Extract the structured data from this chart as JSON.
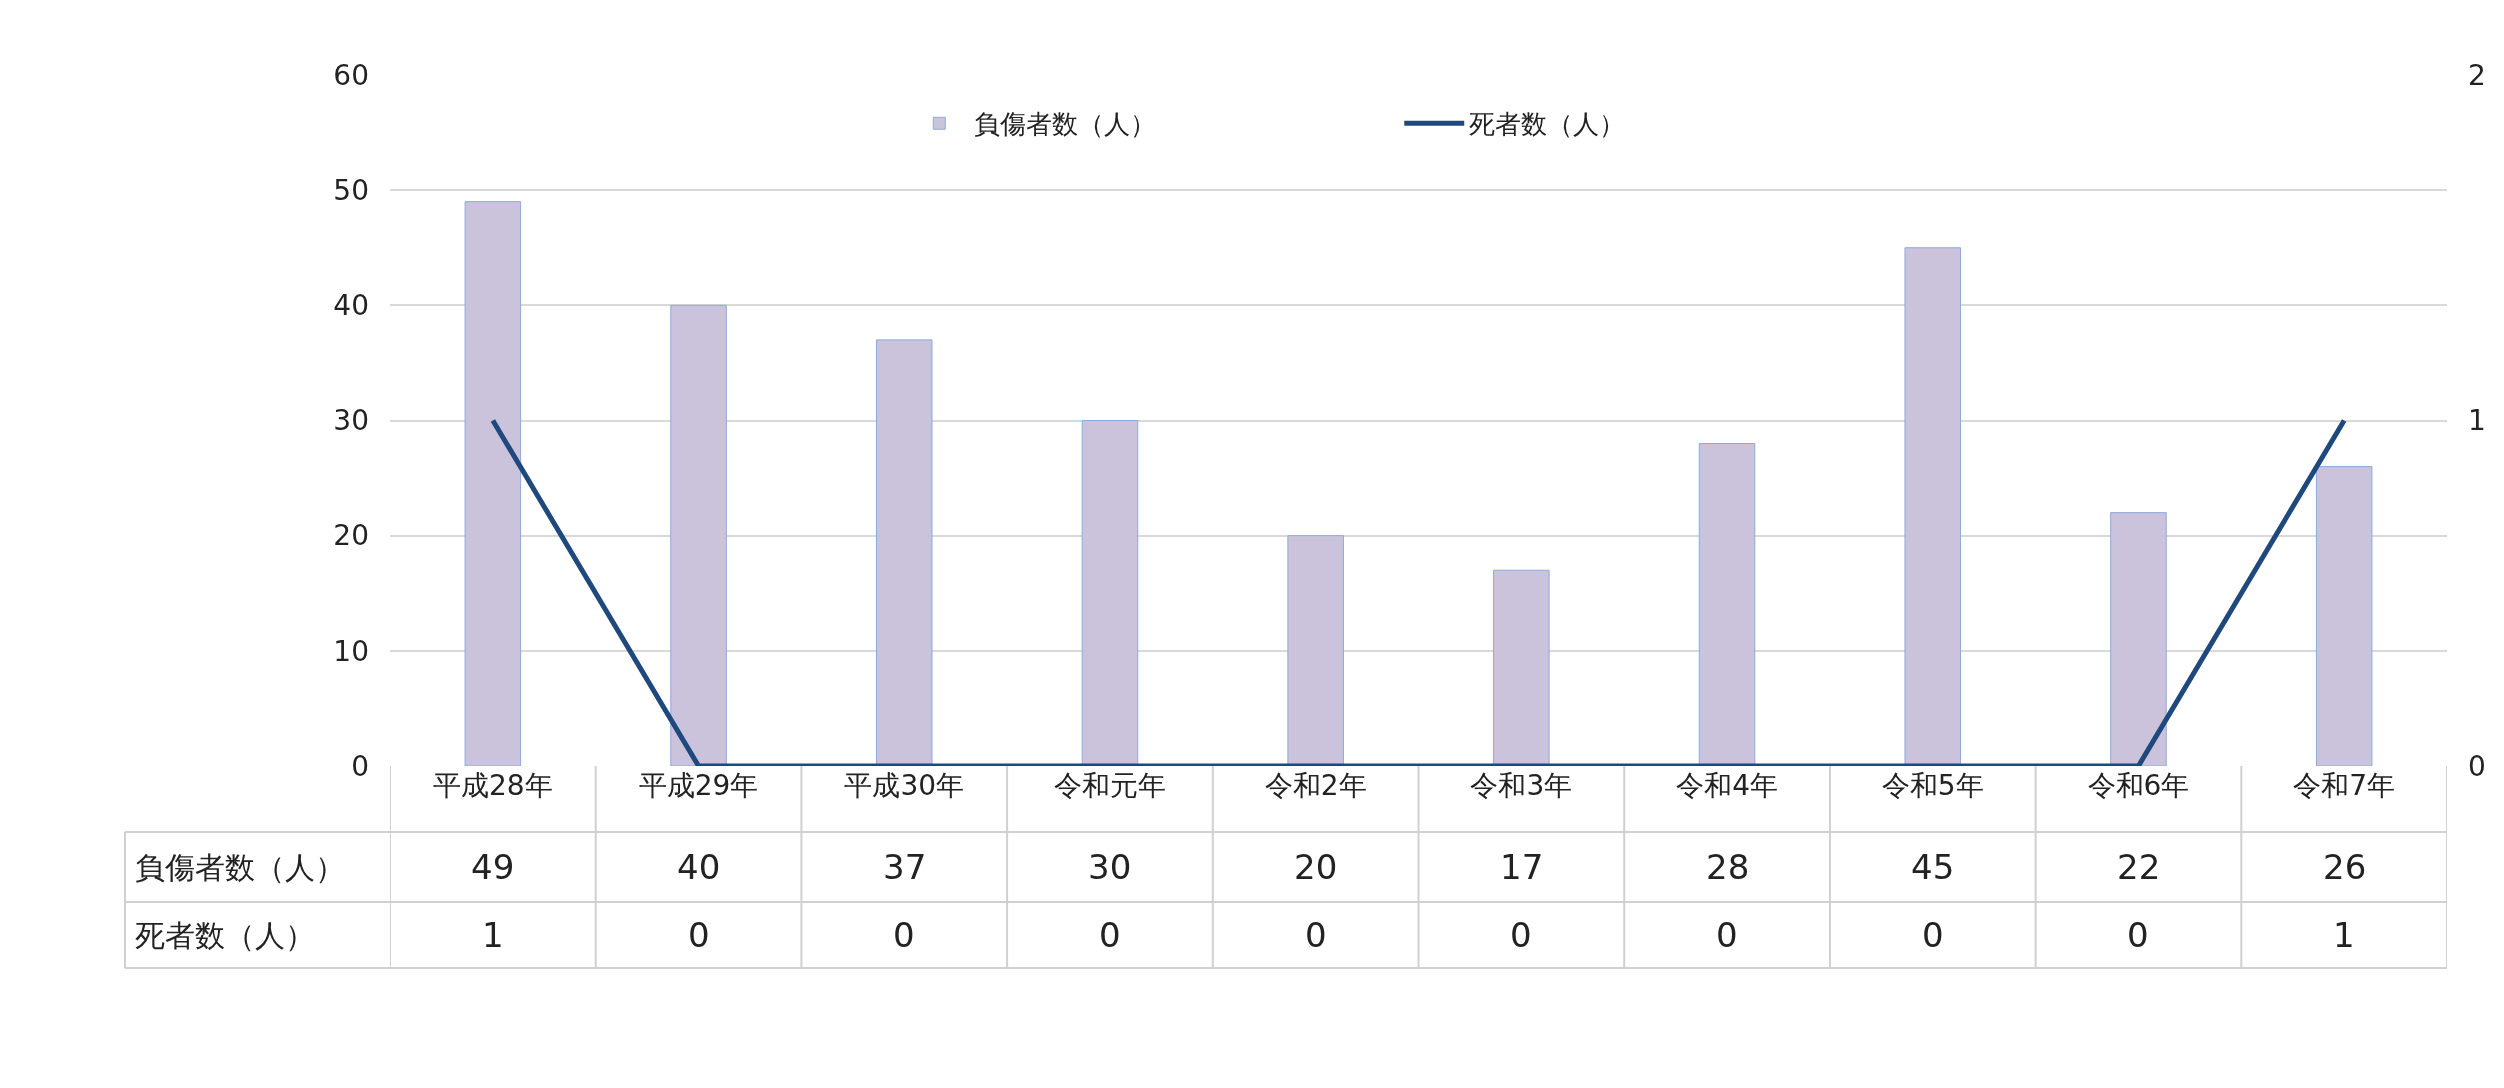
{
  "chart_data": {
    "type": "bar",
    "categories": [
      "平成28年",
      "平成29年",
      "平成30年",
      "令和元年",
      "令和2年",
      "令和3年",
      "令和4年",
      "令和5年",
      "令和6年",
      "令和7年"
    ],
    "series": [
      {
        "name": "負傷者数（人）",
        "color": "#cbc3dc",
        "values": [
          49,
          40,
          37,
          30,
          20,
          17,
          28,
          45,
          22,
          26
        ]
      },
      {
        "name": "死者数（人）",
        "type": "line",
        "axis": "y2",
        "color": "#1f497d",
        "values": [
          1,
          0,
          0,
          0,
          0,
          0,
          0,
          0,
          0,
          1
        ]
      }
    ],
    "ylim": [
      0,
      60
    ],
    "yticks": [
      0,
      10,
      20,
      30,
      40,
      50,
      60
    ],
    "y2lim": [
      0,
      2
    ],
    "y2ticks": [
      0,
      1,
      2
    ],
    "grid": "y",
    "legend": "top",
    "data_labels": true,
    "marker": "none",
    "line_style": "solid"
  }
}
